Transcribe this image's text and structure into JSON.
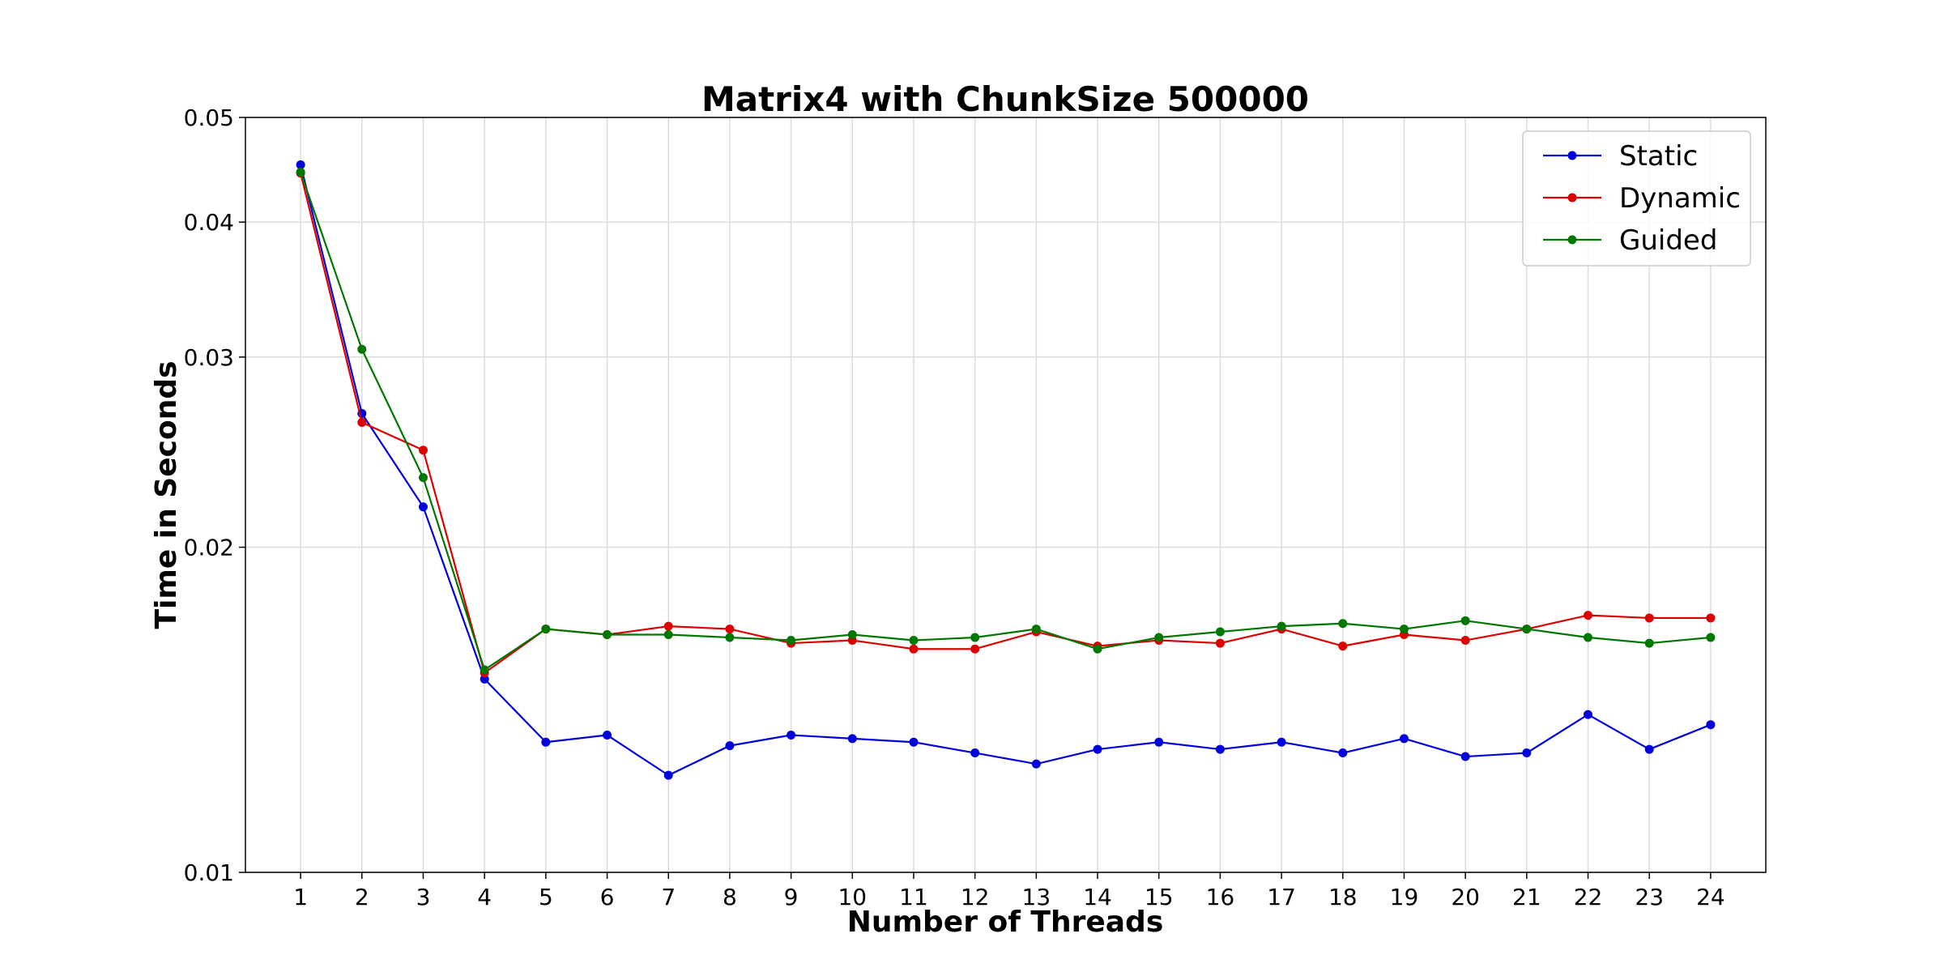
{
  "chart_data": {
    "type": "line",
    "title": "Matrix4 with ChunkSize 500000",
    "xlabel": "Number of Threads",
    "ylabel": "Time in Seconds",
    "yscale": "log",
    "ylim": [
      0.01,
      0.05
    ],
    "y_ticks": [
      0.01,
      0.02,
      0.03,
      0.04,
      0.05
    ],
    "y_tick_labels": [
      "0.01",
      "0.02",
      "0.03",
      "0.04",
      "0.05"
    ],
    "grid": true,
    "legend_position": "top-right",
    "x": [
      1,
      2,
      3,
      4,
      5,
      6,
      7,
      8,
      9,
      10,
      11,
      12,
      13,
      14,
      15,
      16,
      17,
      18,
      19,
      20,
      21,
      22,
      23,
      24
    ],
    "x_tick_labels": [
      "1",
      "2",
      "3",
      "4",
      "5",
      "6",
      "7",
      "8",
      "9",
      "10",
      "11",
      "12",
      "13",
      "14",
      "15",
      "16",
      "17",
      "18",
      "19",
      "20",
      "21",
      "22",
      "23",
      "24"
    ],
    "series": [
      {
        "name": "Static",
        "color": "#0000dd",
        "values": [
          0.0452,
          0.0266,
          0.0218,
          0.0151,
          0.0132,
          0.0134,
          0.0123,
          0.0131,
          0.0134,
          0.0133,
          0.0132,
          0.0129,
          0.0126,
          0.013,
          0.0132,
          0.013,
          0.0132,
          0.0129,
          0.0133,
          0.0128,
          0.0129,
          0.014,
          0.013,
          0.0137
        ]
      },
      {
        "name": "Dynamic",
        "color": "#dd0000",
        "values": [
          0.0444,
          0.0261,
          0.0246,
          0.0153,
          0.0168,
          0.0166,
          0.0169,
          0.0168,
          0.0163,
          0.0164,
          0.0161,
          0.0161,
          0.0167,
          0.0162,
          0.0164,
          0.0163,
          0.0168,
          0.0162,
          0.0166,
          0.0164,
          0.0168,
          0.0173,
          0.0172,
          0.0172
        ]
      },
      {
        "name": "Guided",
        "color": "#007700",
        "values": [
          0.0445,
          0.0305,
          0.0232,
          0.0154,
          0.0168,
          0.0166,
          0.0166,
          0.0165,
          0.0164,
          0.0166,
          0.0164,
          0.0165,
          0.0168,
          0.0161,
          0.0165,
          0.0167,
          0.0169,
          0.017,
          0.0168,
          0.0171,
          0.0168,
          0.0165,
          0.0163,
          0.0165
        ]
      }
    ]
  }
}
